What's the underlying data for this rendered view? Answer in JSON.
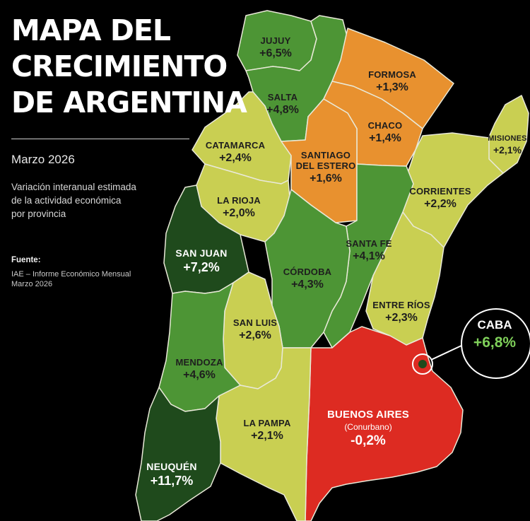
{
  "title": {
    "line1": "MAPA DEL",
    "line2": "CRECIMIENTO",
    "line3": "DE ARGENTINA"
  },
  "date": "Marzo 2026",
  "description": {
    "line1": "Variación interanual estimada",
    "line2": "de la actividad económica",
    "line3": "por provincia"
  },
  "source": {
    "label": "Fuente:",
    "line1": "IAE – Informe Económico Mensual",
    "line2": "Marzo 2026"
  },
  "colors": {
    "dark_green": "#1f4a1c",
    "mid_green": "#4d9535",
    "light_green": "#8fbf45",
    "yellow_green": "#c9cf52",
    "orange": "#e8912f",
    "red": "#dd2b22",
    "caba_value": "#7fd05a"
  },
  "provinces": [
    {
      "name": "JUJUY",
      "value": "+6,5%",
      "color": "mid_green"
    },
    {
      "name": "SALTA",
      "value": "+4,8%",
      "color": "mid_green"
    },
    {
      "name": "FORMOSA",
      "value": "+1,3%",
      "color": "orange"
    },
    {
      "name": "CHACO",
      "value": "+1,4%",
      "color": "orange"
    },
    {
      "name": "MISIONES",
      "value": "+2,1%",
      "color": "yellow_green"
    },
    {
      "name": "CATAMARCA",
      "value": "+2,4%",
      "color": "yellow_green"
    },
    {
      "name": "SANTIAGO",
      "name2": "DEL ESTERO",
      "value": "+1,6%",
      "color": "orange"
    },
    {
      "name": "CORRIENTES",
      "value": "+2,2%",
      "color": "yellow_green"
    },
    {
      "name": "LA RIOJA",
      "value": "+2,0%",
      "color": "yellow_green"
    },
    {
      "name": "SAN JUAN",
      "value": "+7,2%",
      "color": "dark_green"
    },
    {
      "name": "SANTA FE",
      "value": "+4,1%",
      "color": "mid_green"
    },
    {
      "name": "CÓRDOBA",
      "value": "+4,3%",
      "color": "mid_green"
    },
    {
      "name": "ENTRE RÍOS",
      "value": "+2,3%",
      "color": "yellow_green"
    },
    {
      "name": "SAN LUIS",
      "value": "+2,6%",
      "color": "yellow_green"
    },
    {
      "name": "MENDOZA",
      "value": "+4,6%",
      "color": "mid_green"
    },
    {
      "name": "BUENOS AIRES",
      "sub": "(Conurbano)",
      "value": "-0,2%",
      "color": "red"
    },
    {
      "name": "LA PAMPA",
      "value": "+2,1%",
      "color": "yellow_green"
    },
    {
      "name": "NEUQUÉN",
      "value": "+11,7%",
      "color": "dark_green"
    }
  ],
  "caba": {
    "name": "CABA",
    "value": "+6,8%"
  }
}
